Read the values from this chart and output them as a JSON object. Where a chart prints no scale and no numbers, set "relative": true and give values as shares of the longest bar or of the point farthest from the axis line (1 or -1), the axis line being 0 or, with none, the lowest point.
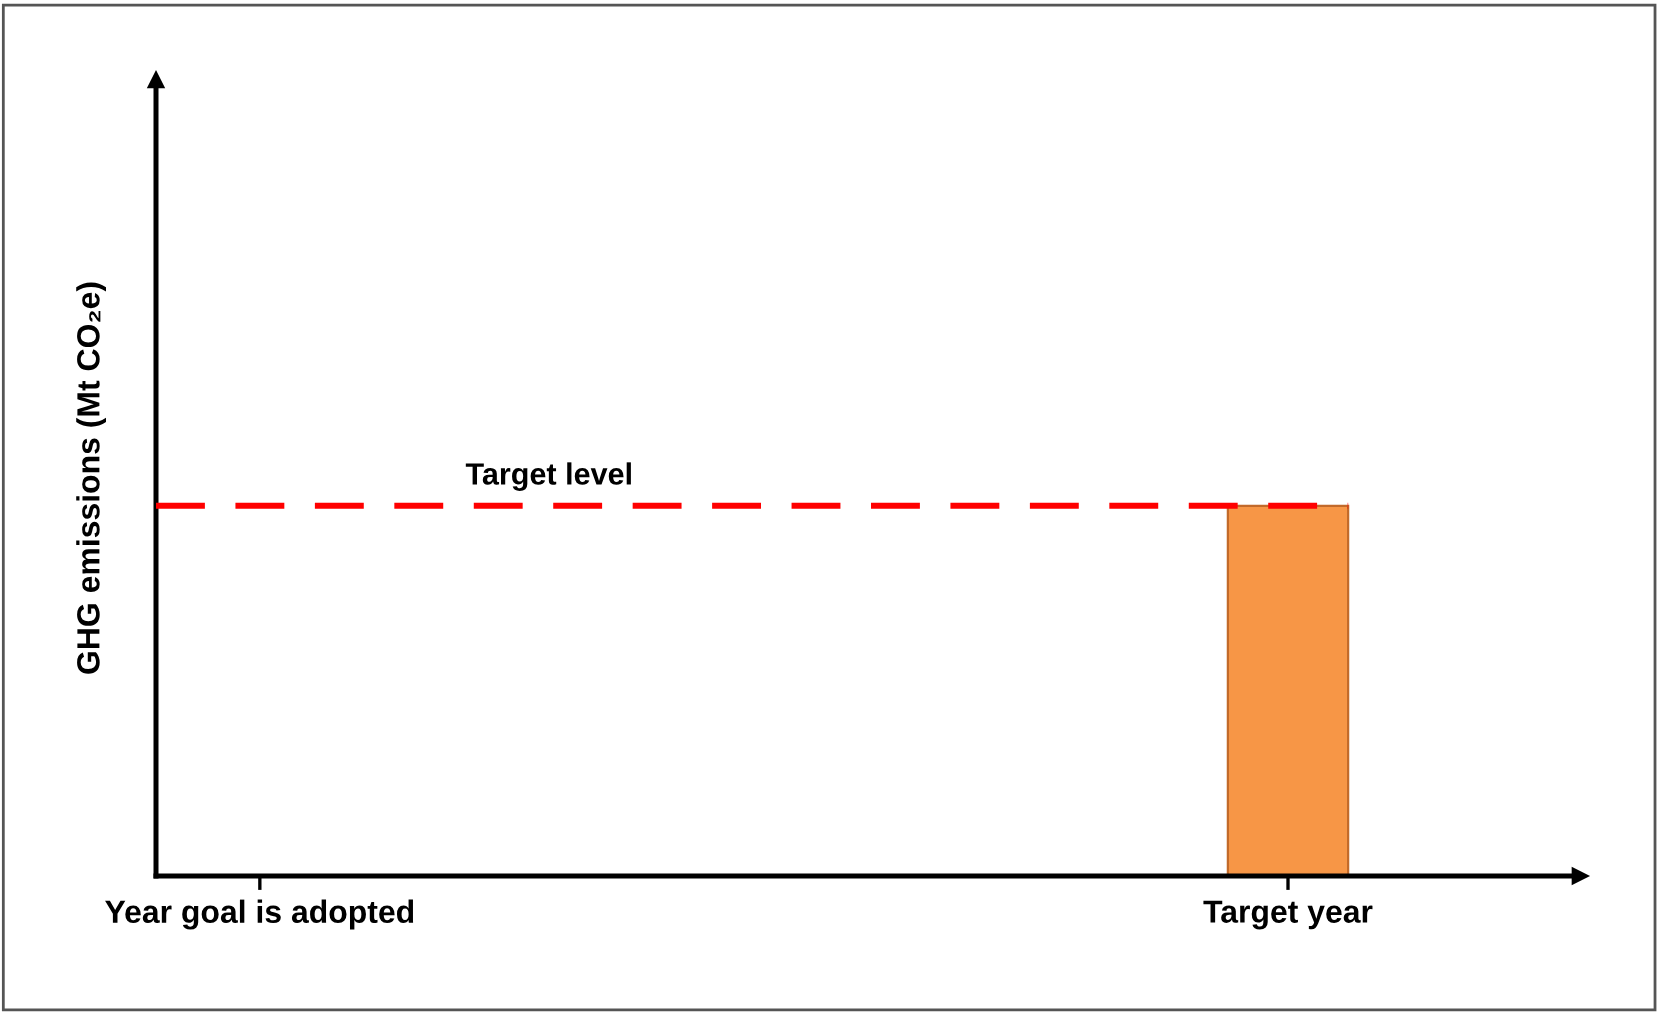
{
  "chart_data": {
    "type": "bar",
    "ylabel": "GHG emissions (Mt CO₂e)",
    "categories": [
      "Year goal is adopted",
      "Target year"
    ],
    "values": [
      null,
      1
    ],
    "color": "#f79646",
    "relative": true,
    "ref_lines": [
      {
        "axis": "y",
        "value": 1,
        "label": "Target level",
        "color": "#ff0000",
        "line_style": "dashed"
      }
    ],
    "grid": false,
    "legend": false
  }
}
